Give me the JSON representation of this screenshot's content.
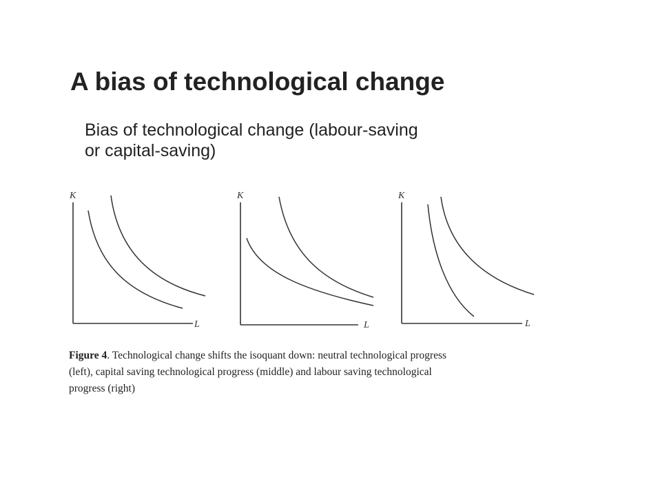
{
  "slide": {
    "title": "A bias of technological change",
    "body_lines": [
      "Bias of technological change (labour-saving",
      "or capital-saving)"
    ]
  },
  "figure": {
    "panels": [
      {
        "id": "left",
        "y_label": "K",
        "x_label": "L",
        "description_word": "neutral"
      },
      {
        "id": "middle",
        "y_label": "K",
        "x_label": "L",
        "description_word": "capital saving"
      },
      {
        "id": "right",
        "y_label": "K",
        "x_label": "L",
        "description_word": "labour saving"
      }
    ],
    "line_color": "#333333"
  },
  "caption": {
    "label": "Figure 4",
    "line1_rest": ". Technological change shifts the isoquant down: neutral technological progress",
    "line2": "(left), capital saving technological progress (middle) and labour saving technological",
    "line3": "progress (right)"
  }
}
